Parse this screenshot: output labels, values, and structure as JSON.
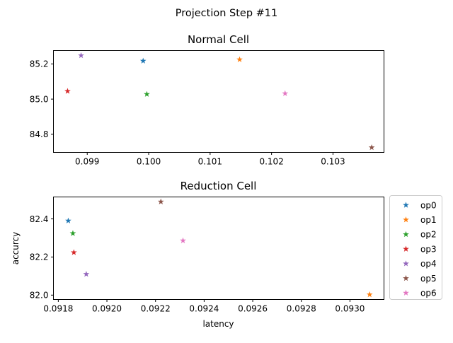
{
  "suptitle": "Projection Step #11",
  "colors": {
    "op0": "#1f77b4",
    "op1": "#ff7f0e",
    "op2": "#2ca02c",
    "op3": "#d62728",
    "op4": "#9467bd",
    "op5": "#8c564b",
    "op6": "#e377c2"
  },
  "legend": {
    "placement": "outside-right of lower subplot",
    "marker": "star",
    "entries": [
      "op0",
      "op1",
      "op2",
      "op3",
      "op4",
      "op5",
      "op6"
    ]
  },
  "chart_data": [
    {
      "type": "scatter",
      "title": "Normal Cell",
      "xlabel": "",
      "ylabel": "",
      "marker": "star",
      "grid": false,
      "xlim": [
        0.09845,
        0.10383
      ],
      "ylim": [
        84.697,
        85.276
      ],
      "xticks": [
        0.099,
        0.1,
        0.101,
        0.102,
        0.103
      ],
      "xtick_labels": [
        "0.099",
        "0.100",
        "0.101",
        "0.102",
        "0.103"
      ],
      "yticks": [
        84.8,
        85.0,
        85.2
      ],
      "ytick_labels": [
        "84.8",
        "85.0",
        "85.2"
      ],
      "series": [
        {
          "name": "op0",
          "x": 0.09991,
          "y": 85.217
        },
        {
          "name": "op1",
          "x": 0.10148,
          "y": 85.225
        },
        {
          "name": "op2",
          "x": 0.09997,
          "y": 85.028
        },
        {
          "name": "op3",
          "x": 0.09868,
          "y": 85.045
        },
        {
          "name": "op4",
          "x": 0.0989,
          "y": 85.248
        },
        {
          "name": "op5",
          "x": 0.10363,
          "y": 84.725
        },
        {
          "name": "op6",
          "x": 0.10222,
          "y": 85.032
        }
      ]
    },
    {
      "type": "scatter",
      "title": "Reduction Cell",
      "xlabel": "latency",
      "ylabel": "accurcy",
      "marker": "star",
      "grid": false,
      "xlim": [
        0.09178,
        0.09314
      ],
      "ylim": [
        81.977,
        82.515
      ],
      "xticks": [
        0.0918,
        0.092,
        0.0922,
        0.0924,
        0.0926,
        0.0928,
        0.093
      ],
      "xtick_labels": [
        "0.0918",
        "0.0920",
        "0.0922",
        "0.0924",
        "0.0926",
        "0.0928",
        "0.0930"
      ],
      "yticks": [
        82.0,
        82.2,
        82.4
      ],
      "ytick_labels": [
        "82.0",
        "82.2",
        "82.4"
      ],
      "series": [
        {
          "name": "op0",
          "x": 0.091841,
          "y": 82.39
        },
        {
          "name": "op1",
          "x": 0.093081,
          "y": 82.003
        },
        {
          "name": "op2",
          "x": 0.09186,
          "y": 82.324
        },
        {
          "name": "op3",
          "x": 0.091864,
          "y": 82.224
        },
        {
          "name": "op4",
          "x": 0.091915,
          "y": 82.11
        },
        {
          "name": "op5",
          "x": 0.092222,
          "y": 82.49
        },
        {
          "name": "op6",
          "x": 0.092313,
          "y": 82.286
        }
      ]
    }
  ]
}
